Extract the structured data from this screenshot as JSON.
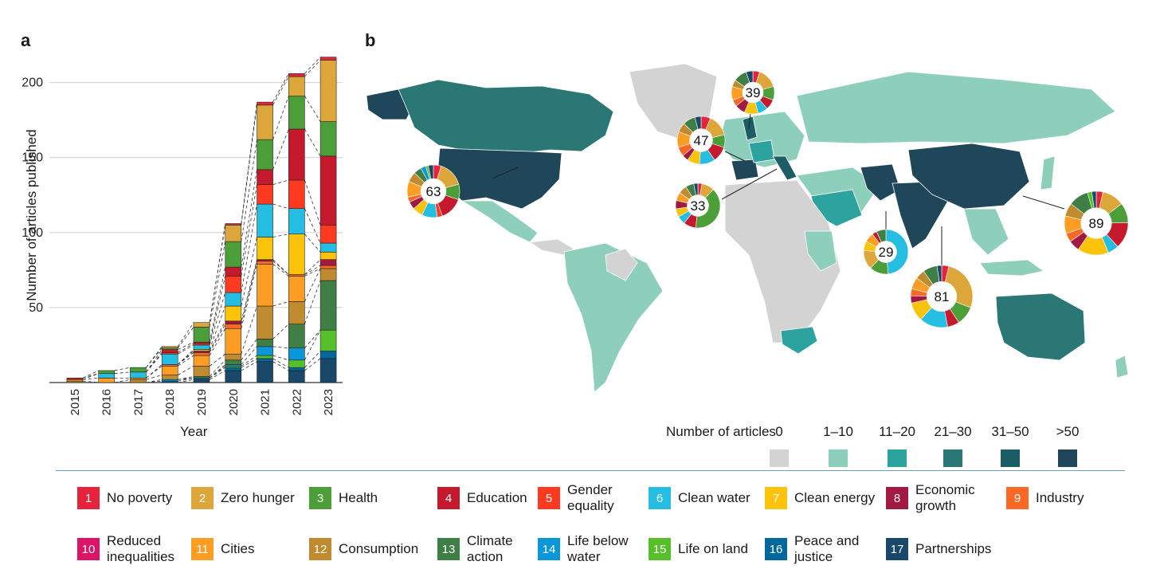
{
  "panel_a_label": "a",
  "panel_b_label": "b",
  "colors": {
    "1": "#e5243b",
    "2": "#dda63a",
    "3": "#4c9f38",
    "4": "#c5192d",
    "5": "#ff3a21",
    "6": "#26bde2",
    "7": "#fcc30b",
    "8": "#a21942",
    "9": "#fd6925",
    "10": "#dd1367",
    "11": "#fd9d24",
    "12": "#bf8b2e",
    "13": "#3f7e44",
    "14": "#0a97d9",
    "15": "#56c02b",
    "16": "#00689d",
    "17": "#19486a"
  },
  "chart_data": [
    {
      "type": "bar",
      "stacked": true,
      "xlabel": "Year",
      "ylabel": "Number of articles published",
      "ylim": [
        0,
        220
      ],
      "yticks": [
        50,
        100,
        150,
        200
      ],
      "grid": "horizontal",
      "categories": [
        "2015",
        "2016",
        "2017",
        "2018",
        "2019",
        "2020",
        "2021",
        "2022",
        "2023"
      ],
      "stack_order": [
        "17",
        "16",
        "15",
        "14",
        "13",
        "12",
        "11",
        "10",
        "9",
        "8",
        "7",
        "6",
        "5",
        "4",
        "3",
        "2",
        "1"
      ],
      "series": [
        {
          "name": "17",
          "values": [
            0,
            0,
            0,
            0,
            2,
            8,
            14,
            8,
            16
          ]
        },
        {
          "name": "16",
          "values": [
            0,
            0,
            0,
            1,
            1,
            2,
            2,
            2,
            5
          ]
        },
        {
          "name": "15",
          "values": [
            0,
            0,
            0,
            0,
            0,
            1,
            2,
            5,
            14
          ]
        },
        {
          "name": "14",
          "values": [
            0,
            0,
            0,
            1,
            0,
            1,
            6,
            8,
            0
          ]
        },
        {
          "name": "13",
          "values": [
            0,
            0,
            0,
            0,
            1,
            3,
            5,
            16,
            33
          ]
        },
        {
          "name": "12",
          "values": [
            1,
            0,
            2,
            3,
            7,
            4,
            22,
            15,
            8
          ]
        },
        {
          "name": "11",
          "values": [
            1,
            3,
            1,
            6,
            7,
            17,
            28,
            17,
            0
          ]
        },
        {
          "name": "10",
          "values": [
            0,
            0,
            0,
            0,
            0,
            0,
            0,
            0,
            0
          ]
        },
        {
          "name": "9",
          "values": [
            0,
            0,
            0,
            1,
            2,
            3,
            2,
            1,
            2
          ]
        },
        {
          "name": "8",
          "values": [
            0,
            0,
            0,
            0,
            1,
            2,
            1,
            0,
            4
          ]
        },
        {
          "name": "7",
          "values": [
            0,
            0,
            0,
            0,
            1,
            10,
            15,
            27,
            5
          ]
        },
        {
          "name": "6",
          "values": [
            0,
            3,
            4,
            7,
            3,
            9,
            22,
            17,
            6
          ]
        },
        {
          "name": "5",
          "values": [
            0,
            0,
            0,
            1,
            1,
            11,
            13,
            19,
            12
          ]
        },
        {
          "name": "4",
          "values": [
            1,
            0,
            0,
            2,
            1,
            6,
            10,
            34,
            46
          ]
        },
        {
          "name": "3",
          "values": [
            0,
            2,
            3,
            1,
            10,
            17,
            20,
            22,
            23
          ]
        },
        {
          "name": "2",
          "values": [
            0,
            0,
            0,
            1,
            3,
            11,
            23,
            13,
            41
          ]
        },
        {
          "name": "1",
          "values": [
            0,
            0,
            0,
            0,
            0,
            1,
            2,
            2,
            2
          ]
        }
      ]
    },
    {
      "type": "heatmap",
      "subtype": "choropleth-map",
      "legend_title": "Number of articles",
      "classes": [
        {
          "label": "0",
          "color": "#d3d3d3"
        },
        {
          "label": "1–10",
          "color": "#8ecfbb"
        },
        {
          "label": "11–20",
          "color": "#2ca39e"
        },
        {
          "label": "21–30",
          "color": "#2a7775"
        },
        {
          "label": "31–50",
          "color": "#1c5e66"
        },
        {
          "label": ">50",
          "color": "#20465a"
        }
      ],
      "highlighted_regions": [
        {
          "region": "United States",
          "class": ">50"
        },
        {
          "region": "Canada",
          "class": "21–30"
        },
        {
          "region": "China",
          "class": ">50"
        },
        {
          "region": "India",
          "class": ">50"
        },
        {
          "region": "Pakistan",
          "class": ">50"
        },
        {
          "region": "United Kingdom",
          "class": "31–50"
        },
        {
          "region": "Spain",
          "class": ">50"
        },
        {
          "region": "Italy",
          "class": "31–50"
        },
        {
          "region": "Australia",
          "class": "21–30"
        },
        {
          "region": "South Africa",
          "class": "11–20"
        }
      ],
      "donuts": [
        {
          "total": 63,
          "shares": [
            {
              "goal": "1",
              "v": 3
            },
            {
              "goal": "2",
              "v": 10
            },
            {
              "goal": "3",
              "v": 6
            },
            {
              "goal": "4",
              "v": 9
            },
            {
              "goal": "5",
              "v": 2
            },
            {
              "goal": "6",
              "v": 6
            },
            {
              "goal": "7",
              "v": 4
            },
            {
              "goal": "8",
              "v": 3
            },
            {
              "goal": "9",
              "v": 2
            },
            {
              "goal": "11",
              "v": 6
            },
            {
              "goal": "12",
              "v": 4
            },
            {
              "goal": "13",
              "v": 3
            },
            {
              "goal": "14",
              "v": 2
            },
            {
              "goal": "15",
              "v": 1
            },
            {
              "goal": "17",
              "v": 2
            }
          ]
        },
        {
          "total": 47,
          "shares": [
            {
              "goal": "1",
              "v": 3
            },
            {
              "goal": "2",
              "v": 7
            },
            {
              "goal": "3",
              "v": 4
            },
            {
              "goal": "4",
              "v": 5
            },
            {
              "goal": "6",
              "v": 5
            },
            {
              "goal": "7",
              "v": 4
            },
            {
              "goal": "8",
              "v": 2
            },
            {
              "goal": "9",
              "v": 3
            },
            {
              "goal": "11",
              "v": 5
            },
            {
              "goal": "12",
              "v": 3
            },
            {
              "goal": "13",
              "v": 4
            },
            {
              "goal": "17",
              "v": 2
            }
          ]
        },
        {
          "total": 39,
          "shares": [
            {
              "goal": "1",
              "v": 2
            },
            {
              "goal": "2",
              "v": 6
            },
            {
              "goal": "3",
              "v": 4
            },
            {
              "goal": "4",
              "v": 3
            },
            {
              "goal": "6",
              "v": 3
            },
            {
              "goal": "7",
              "v": 4
            },
            {
              "goal": "8",
              "v": 3
            },
            {
              "goal": "9",
              "v": 2
            },
            {
              "goal": "11",
              "v": 4
            },
            {
              "goal": "12",
              "v": 2
            },
            {
              "goal": "13",
              "v": 4
            },
            {
              "goal": "17",
              "v": 2
            }
          ]
        },
        {
          "total": 33,
          "shares": [
            {
              "goal": "1",
              "v": 1
            },
            {
              "goal": "2",
              "v": 3
            },
            {
              "goal": "3",
              "v": 13
            },
            {
              "goal": "4",
              "v": 3
            },
            {
              "goal": "6",
              "v": 2
            },
            {
              "goal": "7",
              "v": 2
            },
            {
              "goal": "8",
              "v": 2
            },
            {
              "goal": "11",
              "v": 2
            },
            {
              "goal": "12",
              "v": 2
            },
            {
              "goal": "13",
              "v": 2
            },
            {
              "goal": "17",
              "v": 1
            }
          ]
        },
        {
          "total": 29,
          "shares": [
            {
              "goal": "6",
              "v": 14
            },
            {
              "goal": "3",
              "v": 4
            },
            {
              "goal": "2",
              "v": 4
            },
            {
              "goal": "7",
              "v": 2
            },
            {
              "goal": "11",
              "v": 2
            },
            {
              "goal": "4",
              "v": 1
            },
            {
              "goal": "13",
              "v": 2
            }
          ]
        },
        {
          "total": 81,
          "shares": [
            {
              "goal": "1",
              "v": 3
            },
            {
              "goal": "2",
              "v": 22
            },
            {
              "goal": "3",
              "v": 8
            },
            {
              "goal": "4",
              "v": 5
            },
            {
              "goal": "6",
              "v": 12
            },
            {
              "goal": "7",
              "v": 8
            },
            {
              "goal": "8",
              "v": 3
            },
            {
              "goal": "9",
              "v": 3
            },
            {
              "goal": "11",
              "v": 5
            },
            {
              "goal": "12",
              "v": 4
            },
            {
              "goal": "13",
              "v": 6
            },
            {
              "goal": "17",
              "v": 2
            }
          ]
        },
        {
          "total": 89,
          "shares": [
            {
              "goal": "1",
              "v": 3
            },
            {
              "goal": "2",
              "v": 10
            },
            {
              "goal": "3",
              "v": 9
            },
            {
              "goal": "4",
              "v": 12
            },
            {
              "goal": "6",
              "v": 5
            },
            {
              "goal": "7",
              "v": 14
            },
            {
              "goal": "8",
              "v": 5
            },
            {
              "goal": "9",
              "v": 4
            },
            {
              "goal": "11",
              "v": 8
            },
            {
              "goal": "12",
              "v": 6
            },
            {
              "goal": "13",
              "v": 9
            },
            {
              "goal": "15",
              "v": 2
            },
            {
              "goal": "17",
              "v": 2
            }
          ]
        }
      ]
    }
  ],
  "legend": [
    {
      "num": "1",
      "label": "No poverty"
    },
    {
      "num": "2",
      "label": "Zero hunger"
    },
    {
      "num": "3",
      "label": "Health"
    },
    {
      "num": "4",
      "label": "Education"
    },
    {
      "num": "5",
      "label": "Gender\nequality"
    },
    {
      "num": "6",
      "label": "Clean water"
    },
    {
      "num": "7",
      "label": "Clean energy"
    },
    {
      "num": "8",
      "label": "Economic\ngrowth"
    },
    {
      "num": "9",
      "label": "Industry"
    },
    {
      "num": "10",
      "label": "Reduced\ninequalities"
    },
    {
      "num": "11",
      "label": "Cities"
    },
    {
      "num": "12",
      "label": "Consumption"
    },
    {
      "num": "13",
      "label": "Climate\naction"
    },
    {
      "num": "14",
      "label": "Life below\nwater"
    },
    {
      "num": "15",
      "label": "Life on land"
    },
    {
      "num": "16",
      "label": "Peace and\njustice"
    },
    {
      "num": "17",
      "label": "Partnerships"
    }
  ]
}
